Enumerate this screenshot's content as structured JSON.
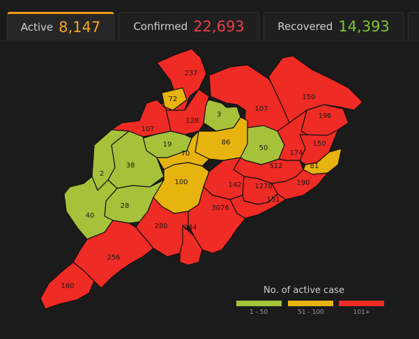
{
  "tabs": [
    {
      "label": "Active",
      "value": "8,147",
      "color": "#f5a623"
    },
    {
      "label": "Confirmed",
      "value": "22,693",
      "color": "#e8404a"
    },
    {
      "label": "Recovered",
      "value": "14,393",
      "color": "#7ec63a"
    }
  ],
  "colors": {
    "low": "#a6c23a",
    "mid": "#e6b30f",
    "high": "#ee2b24"
  },
  "legend": {
    "title": "No. of active case",
    "items": [
      {
        "label": "1 - 50",
        "level": "low"
      },
      {
        "label": "51 - 100",
        "level": "mid"
      },
      {
        "label": "101+",
        "level": "high"
      }
    ]
  },
  "districts": [
    {
      "id": "237",
      "value": "237",
      "level": "high"
    },
    {
      "id": "72",
      "value": "72",
      "level": "mid"
    },
    {
      "id": "3",
      "value": "3",
      "level": "low"
    },
    {
      "id": "107a",
      "value": "107",
      "level": "high"
    },
    {
      "id": "150a",
      "value": "150",
      "level": "high"
    },
    {
      "id": "196",
      "value": "196",
      "level": "high"
    },
    {
      "id": "128",
      "value": "128",
      "level": "high"
    },
    {
      "id": "107b",
      "value": "107",
      "level": "high"
    },
    {
      "id": "19",
      "value": "19",
      "level": "low"
    },
    {
      "id": "86",
      "value": "86",
      "level": "mid"
    },
    {
      "id": "50",
      "value": "50",
      "level": "low"
    },
    {
      "id": "174",
      "value": "174",
      "level": "high"
    },
    {
      "id": "150b",
      "value": "150",
      "level": "high"
    },
    {
      "id": "81",
      "value": "81",
      "level": "mid"
    },
    {
      "id": "2",
      "value": "2",
      "level": "low"
    },
    {
      "id": "38",
      "value": "38",
      "level": "low"
    },
    {
      "id": "70",
      "value": "70",
      "level": "mid"
    },
    {
      "id": "512",
      "value": "512",
      "level": "high"
    },
    {
      "id": "100",
      "value": "100",
      "level": "mid"
    },
    {
      "id": "142",
      "value": "142",
      "level": "high"
    },
    {
      "id": "1278",
      "value": "1278",
      "level": "high"
    },
    {
      "id": "190",
      "value": "190",
      "level": "high"
    },
    {
      "id": "28",
      "value": "28",
      "level": "low"
    },
    {
      "id": "151",
      "value": "151",
      "level": "high"
    },
    {
      "id": "40",
      "value": "40",
      "level": "low"
    },
    {
      "id": "3076",
      "value": "3076",
      "level": "high"
    },
    {
      "id": "280",
      "value": "280",
      "level": "high"
    },
    {
      "id": "244",
      "value": "244",
      "level": "high"
    },
    {
      "id": "256",
      "value": "256",
      "level": "high"
    },
    {
      "id": "180",
      "value": "180",
      "level": "high"
    }
  ]
}
